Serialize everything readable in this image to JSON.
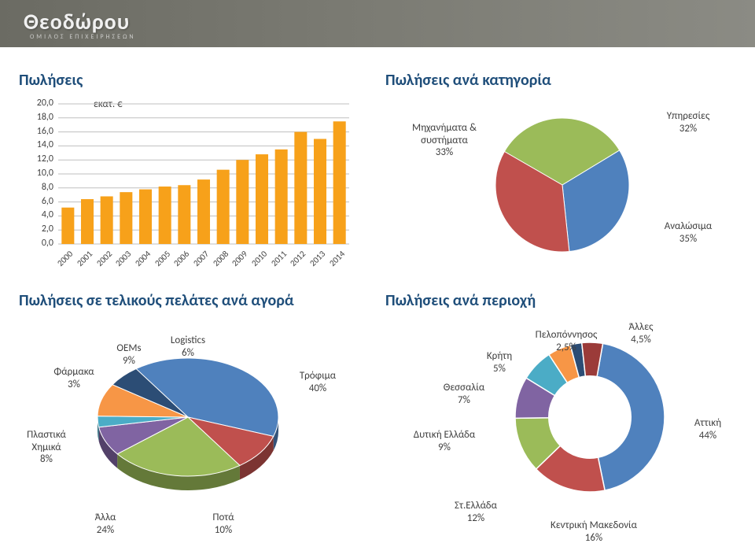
{
  "banner": {
    "logo": "Θεοδώρου",
    "sub": "ΟΜΙΛΟΣ ΕΠΙΧΕΙΡΗΣΕΩΝ"
  },
  "bar_chart": {
    "title": "Πωλήσεις",
    "y_unit": "εκατ. €",
    "type": "bar",
    "categories": [
      "2000",
      "2001",
      "2002",
      "2003",
      "2004",
      "2005",
      "2006",
      "2007",
      "2008",
      "2009",
      "2010",
      "2011",
      "2012",
      "2013",
      "2014"
    ],
    "values": [
      5.2,
      6.4,
      6.8,
      7.4,
      7.8,
      8.2,
      8.4,
      9.2,
      10.6,
      12.0,
      12.8,
      13.5,
      16.0,
      15.0,
      17.5
    ],
    "ytick_labels": [
      "0,0",
      "2,0",
      "4,0",
      "6,0",
      "8,0",
      "10,0",
      "12,0",
      "14,0",
      "16,0",
      "18,0",
      "20,0"
    ],
    "ytick_values": [
      0,
      2,
      4,
      6,
      8,
      10,
      12,
      14,
      16,
      18,
      20
    ],
    "ymax": 20,
    "bar_color": "#f7a11a",
    "grid_color": "#bfbfbf",
    "axis_color": "#808080"
  },
  "category_pie": {
    "title": "Πωλήσεις ανά κατηγορία",
    "type": "pie",
    "slices": [
      {
        "label_line1": "Μηχανήματα &",
        "label_line2": "συστήματα",
        "pct_text": "33%",
        "value": 33,
        "color": "#9bbb59"
      },
      {
        "label_line1": "Υπηρεσίες",
        "label_line2": "",
        "pct_text": "32%",
        "value": 32,
        "color": "#4f81bd"
      },
      {
        "label_line1": "Αναλώσιμα",
        "label_line2": "",
        "pct_text": "35%",
        "value": 35,
        "color": "#c0504d"
      }
    ]
  },
  "market_pie": {
    "title": "Πωλήσεις σε τελικούς πελάτες ανά αγορά",
    "type": "pie-3d",
    "slices": [
      {
        "label": "Τρόφιμα",
        "pct_text": "40%",
        "value": 40,
        "color": "#4f81bd"
      },
      {
        "label": "Ποτά",
        "pct_text": "10%",
        "value": 10,
        "color": "#c0504d"
      },
      {
        "label": "Άλλα",
        "pct_text": "24%",
        "value": 24,
        "color": "#9bbb59"
      },
      {
        "label": "Πλαστικά Χημικά",
        "pct_text": "8%",
        "value": 8,
        "color": "#8064a2"
      },
      {
        "label": "Φάρμακα",
        "pct_text": "3%",
        "value": 3,
        "color": "#4bacc6"
      },
      {
        "label": "OEMs",
        "pct_text": "9%",
        "value": 9,
        "color": "#f79646"
      },
      {
        "label": "Logistics",
        "pct_text": "6%",
        "value": 6,
        "color": "#2c4d75"
      }
    ]
  },
  "region_donut": {
    "title": "Πωλήσεις ανά περιοχή",
    "type": "donut",
    "inner_ratio": 0.55,
    "bg_color": "#ffffff",
    "slices": [
      {
        "label": "Αττική",
        "pct_text": "44%",
        "value": 44,
        "color": "#4f81bd"
      },
      {
        "label": "Κεντρική Μακεδονία",
        "pct_text": "16%",
        "value": 16,
        "color": "#c0504d"
      },
      {
        "label": "Στ.Ελλάδα",
        "pct_text": "12%",
        "value": 12,
        "color": "#9bbb59"
      },
      {
        "label": "Δυτική Ελλάδα",
        "pct_text": "9%",
        "value": 9,
        "color": "#8064a2"
      },
      {
        "label": "Θεσσαλία",
        "pct_text": "7%",
        "value": 7,
        "color": "#4bacc6"
      },
      {
        "label": "Κρήτη",
        "pct_text": "5%",
        "value": 5,
        "color": "#f79646"
      },
      {
        "label": "Πελοπόννησος",
        "pct_text": "2,5%",
        "value": 2.5,
        "color": "#2c4d75"
      },
      {
        "label": "Άλλες",
        "pct_text": "4,5%",
        "value": 4.5,
        "color": "#9b3b39"
      }
    ]
  }
}
